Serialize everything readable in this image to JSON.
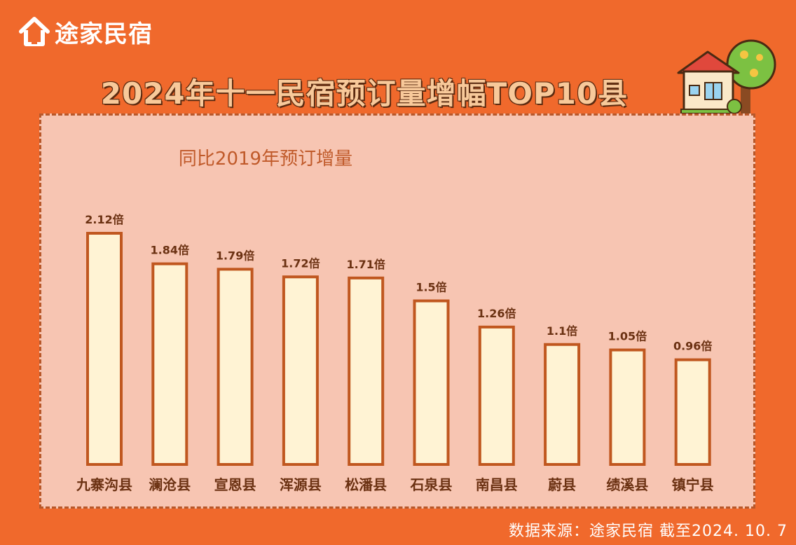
{
  "brand": {
    "name": "途家民宿"
  },
  "header": {
    "title": "2024年十一民宿预订量增幅TOP10县"
  },
  "chart_data": {
    "type": "bar",
    "title": "同比2019年预订增量",
    "categories": [
      "九寨沟县",
      "澜沧县",
      "宣恩县",
      "浑源县",
      "松潘县",
      "石泉县",
      "南昌县",
      "蔚县",
      "绩溪县",
      "镇宁县"
    ],
    "values": [
      2.12,
      1.84,
      1.79,
      1.72,
      1.71,
      1.5,
      1.26,
      1.1,
      1.05,
      0.96
    ],
    "data_labels": [
      "2.12倍",
      "1.84倍",
      "1.79倍",
      "1.72倍",
      "1.71倍",
      "1.5倍",
      "1.26倍",
      "1.1倍",
      "1.05倍",
      "0.96倍"
    ],
    "ylim": [
      0,
      2.12
    ],
    "grid": false,
    "legend": "none",
    "bar_fill": "#fff3d4",
    "bar_stroke": "#c0571f",
    "label_color": "#6b3112",
    "title_color": "#c05a2a"
  },
  "footer": {
    "source": "数据来源：途家民宿 截至2024. 10. 7"
  },
  "colors": {
    "background": "#f0692c",
    "panel": "#f7c5b2",
    "panel_border": "#b8582a"
  }
}
